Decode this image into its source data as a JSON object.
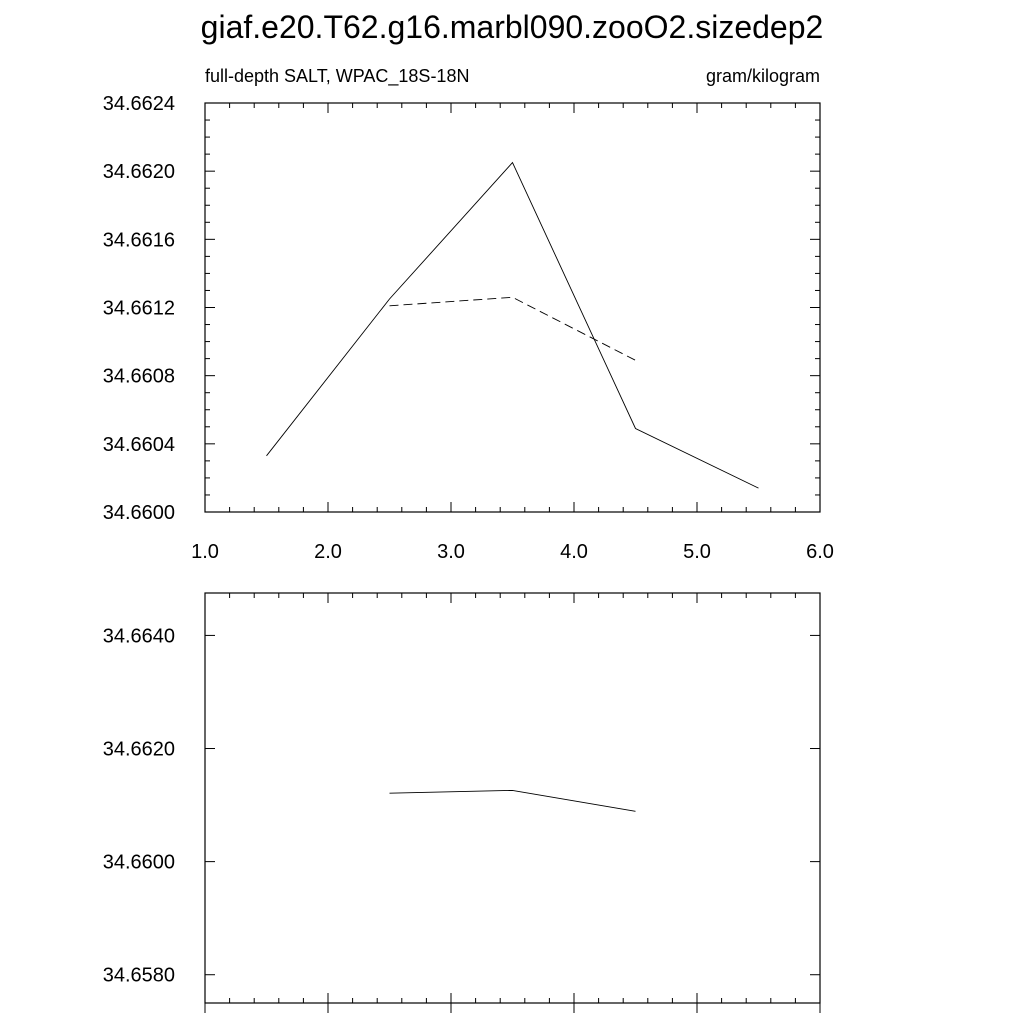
{
  "title": "giaf.e20.T62.g16.marbl090.zooO2.sizedep2",
  "chart_data": [
    {
      "type": "line",
      "left_string": "full-depth SALT, WPAC_18S-18N",
      "right_string": "gram/kilogram",
      "xlim": [
        1.0,
        6.0
      ],
      "ylim": [
        34.66,
        34.6624
      ],
      "x_ticks": [
        "1.0",
        "2.0",
        "3.0",
        "4.0",
        "5.0",
        "6.0"
      ],
      "y_ticks": [
        "34.6600",
        "34.6604",
        "34.6608",
        "34.6612",
        "34.6616",
        "34.6620",
        "34.6624"
      ],
      "series": [
        {
          "style": "solid",
          "x": [
            1.5,
            2.5,
            3.5,
            4.5,
            5.5
          ],
          "y": [
            34.66033,
            34.66125,
            34.66205,
            34.66049,
            34.66014
          ]
        },
        {
          "style": "dashed",
          "x": [
            2.5,
            3.5,
            4.5
          ],
          "y": [
            34.66121,
            34.66126,
            34.66089
          ]
        }
      ]
    },
    {
      "type": "line",
      "xlim": [
        1.0,
        6.0
      ],
      "ylim": [
        34.6575,
        34.66475
      ],
      "x_ticks": [],
      "y_ticks": [
        "34.6580",
        "34.6600",
        "34.6620",
        "34.6640"
      ],
      "series": [
        {
          "style": "solid",
          "x": [
            2.5,
            3.5,
            4.5
          ],
          "y": [
            34.66121,
            34.66126,
            34.66089
          ]
        }
      ]
    }
  ]
}
